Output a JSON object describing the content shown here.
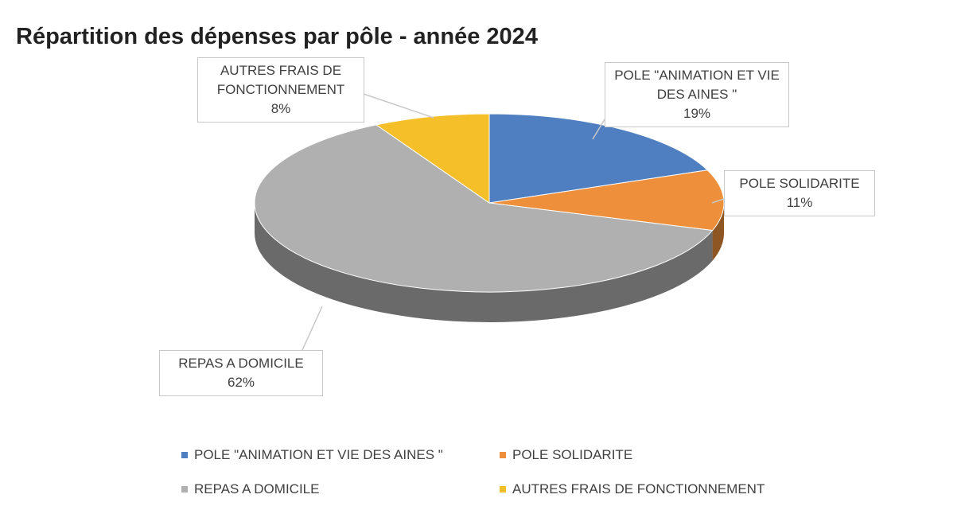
{
  "chart_data": {
    "type": "pie",
    "title": "Répartition des dépenses par pôle - année 2024",
    "categories": [
      "POLE \"ANIMATION ET VIE DES AINES \"",
      "POLE SOLIDARITE",
      "REPAS A DOMICILE",
      "AUTRES FRAIS DE FONCTIONNEMENT"
    ],
    "values": [
      19,
      11,
      62,
      8
    ],
    "value_labels": [
      "19%",
      "11%",
      "62%",
      "8%"
    ],
    "colors": [
      "#4f7fc0",
      "#ed8f3b",
      "#b0b0b0",
      "#f5bf2a"
    ],
    "legend": "bottom"
  }
}
